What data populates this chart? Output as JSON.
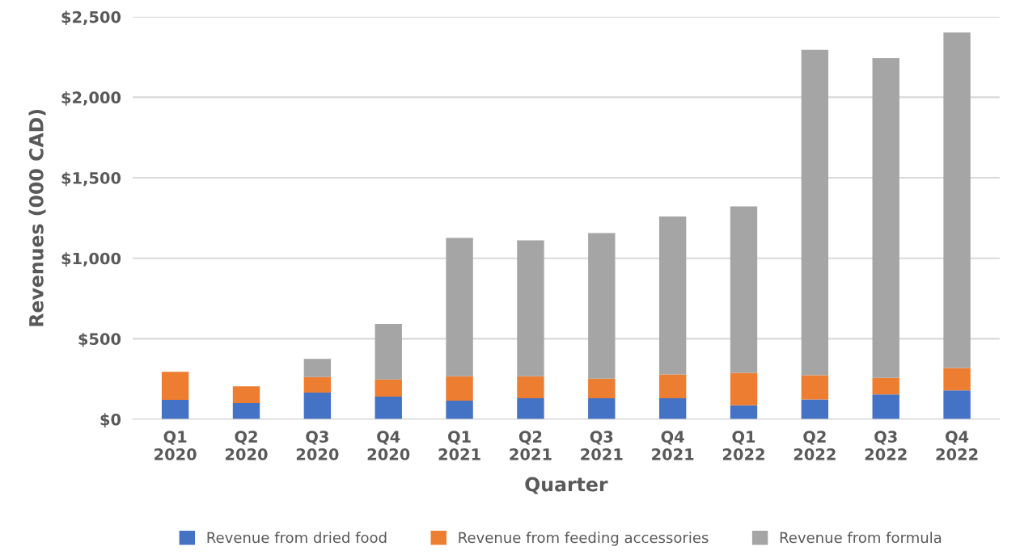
{
  "chart_data": {
    "type": "bar",
    "stacked": true,
    "xlabel": "Quarter",
    "ylabel": "Revenues (000 CAD)",
    "categories": [
      "Q1\n2020",
      "Q2\n2020",
      "Q3\n2020",
      "Q4\n2020",
      "Q1\n2021",
      "Q2\n2021",
      "Q3\n2021",
      "Q4\n2021",
      "Q1\n2022",
      "Q2\n2022",
      "Q3\n2022",
      "Q4\n2022"
    ],
    "series": [
      {
        "name": "Revenue from dried food",
        "color": "#4472c4",
        "values": [
          120,
          100,
          165,
          140,
          115,
          130,
          130,
          130,
          87,
          123,
          154,
          180
        ]
      },
      {
        "name": "Revenue from feeding accessories",
        "color": "#ed7d31",
        "values": [
          175,
          105,
          97,
          107,
          152,
          137,
          122,
          148,
          201,
          150,
          103,
          139
        ]
      },
      {
        "name": "Revenue from formula",
        "color": "#a5a5a5",
        "values": [
          0,
          0,
          113,
          345,
          860,
          844,
          905,
          982,
          1034,
          2021,
          1986,
          2083
        ]
      }
    ],
    "ylim": [
      0,
      2500
    ],
    "yticks": [
      {
        "value": 0,
        "label": "$0"
      },
      {
        "value": 500,
        "label": "$500"
      },
      {
        "value": 1000,
        "label": "$1,000"
      },
      {
        "value": 1500,
        "label": "$1,500"
      },
      {
        "value": 2000,
        "label": "$2,000"
      },
      {
        "value": 2500,
        "label": "$2,500"
      }
    ],
    "grid": "y",
    "legend": "bottom"
  }
}
